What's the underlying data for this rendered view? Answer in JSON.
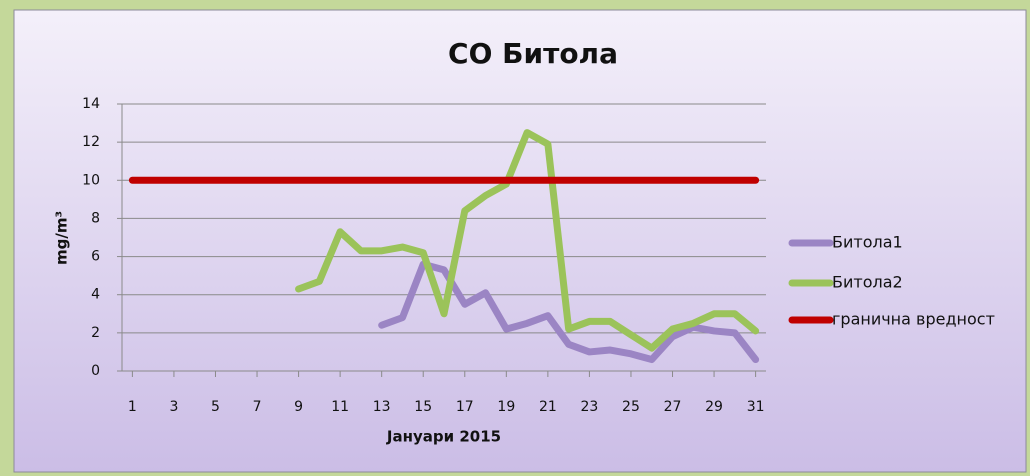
{
  "chart_data": {
    "type": "line",
    "title": "CO Битола",
    "y_label": "mg/m³",
    "x_label": "Јануари 2015",
    "x": [
      1,
      2,
      3,
      4,
      5,
      6,
      7,
      8,
      9,
      10,
      11,
      12,
      13,
      14,
      15,
      16,
      17,
      18,
      19,
      20,
      21,
      22,
      23,
      24,
      25,
      26,
      27,
      28,
      29,
      30,
      31
    ],
    "xlim": [
      0.5,
      31.5
    ],
    "xticks": [
      1,
      3,
      5,
      7,
      9,
      11,
      13,
      15,
      17,
      19,
      21,
      23,
      25,
      27,
      29,
      31
    ],
    "ylim": [
      0,
      14
    ],
    "yticks": [
      0,
      2,
      4,
      6,
      8,
      10,
      12,
      14
    ],
    "grid": true,
    "legend": "right",
    "series": [
      {
        "name": "Битола1",
        "color": "#9b85c4",
        "values": [
          null,
          null,
          null,
          null,
          null,
          null,
          null,
          null,
          null,
          null,
          null,
          null,
          2.4,
          2.8,
          5.6,
          5.3,
          3.5,
          4.1,
          2.2,
          2.5,
          2.9,
          1.4,
          1.0,
          1.1,
          0.9,
          0.6,
          1.8,
          2.3,
          2.1,
          2.0,
          0.6
        ]
      },
      {
        "name": "Битола2",
        "color": "#9bc35a",
        "values": [
          null,
          null,
          null,
          null,
          null,
          null,
          null,
          null,
          4.3,
          4.7,
          7.3,
          6.3,
          6.3,
          6.5,
          6.2,
          3.0,
          8.4,
          9.2,
          9.8,
          12.5,
          11.9,
          2.2,
          2.6,
          2.6,
          1.9,
          1.2,
          2.2,
          2.5,
          3.0,
          3.0,
          2.1
        ]
      },
      {
        "name": "гранична вредност",
        "color": "#c00000",
        "values": [
          10,
          10,
          10,
          10,
          10,
          10,
          10,
          10,
          10,
          10,
          10,
          10,
          10,
          10,
          10,
          10,
          10,
          10,
          10,
          10,
          10,
          10,
          10,
          10,
          10,
          10,
          10,
          10,
          10,
          10,
          10
        ]
      }
    ]
  }
}
